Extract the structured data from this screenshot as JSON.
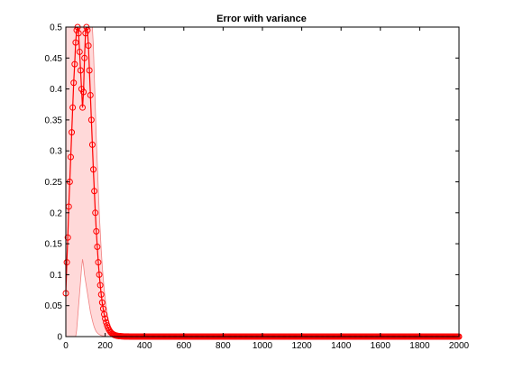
{
  "chart_data": {
    "type": "line",
    "title": "Error with variance",
    "xlabel": "",
    "ylabel": "",
    "xlim": [
      0,
      2000
    ],
    "ylim": [
      0,
      0.5
    ],
    "xticks": [
      0,
      200,
      400,
      600,
      800,
      1000,
      1200,
      1400,
      1600,
      1800,
      2000
    ],
    "yticks": [
      0,
      0.05,
      0.1,
      0.15,
      0.2,
      0.25,
      0.3,
      0.35,
      0.4,
      0.45,
      0.5
    ],
    "grid": false,
    "legend": "none",
    "marker": "circle",
    "colors": {
      "line": "#ff0000",
      "band_fill": "#ffd9d9",
      "band_edge": "#f08080",
      "axes": "#000000",
      "background": "#ffffff"
    },
    "series": [
      {
        "x": [
          0,
          5,
          10,
          15,
          20,
          25,
          30,
          35,
          40,
          45,
          50,
          55,
          60,
          65,
          70,
          75,
          80,
          85,
          90,
          95,
          100,
          105,
          110,
          115,
          120,
          125,
          130,
          135,
          140,
          145,
          150,
          155,
          160,
          165,
          170,
          175,
          180,
          185,
          190,
          195,
          200,
          205,
          210,
          215,
          220,
          225,
          230,
          235,
          240,
          245,
          250,
          260,
          270,
          280,
          290,
          300,
          310,
          320,
          340,
          360,
          400,
          500,
          600,
          800,
          1000,
          1200,
          1400,
          1600,
          1800,
          2000
        ],
        "y": [
          0.07,
          0.12,
          0.16,
          0.21,
          0.25,
          0.29,
          0.33,
          0.37,
          0.41,
          0.44,
          0.475,
          0.495,
          0.5,
          0.49,
          0.46,
          0.43,
          0.4,
          0.37,
          0.395,
          0.45,
          0.49,
          0.5,
          0.495,
          0.47,
          0.43,
          0.39,
          0.35,
          0.31,
          0.27,
          0.235,
          0.2,
          0.17,
          0.145,
          0.12,
          0.1,
          0.083,
          0.068,
          0.055,
          0.045,
          0.036,
          0.029,
          0.023,
          0.018,
          0.014,
          0.011,
          0.0085,
          0.0065,
          0.005,
          0.0038,
          0.0029,
          0.0022,
          0.0013,
          0.0008,
          0.0005,
          0.0003,
          0.0002,
          0.0001,
          0.0001,
          0,
          0,
          0,
          0,
          0,
          0,
          0,
          0,
          0,
          0,
          0,
          0
        ],
        "y_lower": [
          0,
          0,
          0,
          0,
          0,
          0,
          0,
          0,
          0,
          0,
          0,
          0.01,
          0.03,
          0.05,
          0.07,
          0.09,
          0.11,
          0.125,
          0.115,
          0.1,
          0.09,
          0.08,
          0.07,
          0.06,
          0.05,
          0.04,
          0.033,
          0.026,
          0.02,
          0.015,
          0.011,
          0.008,
          0.006,
          0.0045,
          0.0034,
          0.0025,
          0.0018,
          0.0013,
          0.001,
          0.0007,
          0.0005,
          0.0003,
          0.0002,
          0.0001,
          0.0001,
          0,
          0,
          0,
          0,
          0,
          0,
          0,
          0,
          0,
          0,
          0,
          0,
          0,
          0,
          0,
          0,
          0,
          0,
          0,
          0,
          0,
          0,
          0,
          0,
          0
        ],
        "y_upper": [
          0.5,
          0.5,
          0.5,
          0.5,
          0.5,
          0.5,
          0.5,
          0.5,
          0.5,
          0.5,
          0.5,
          0.5,
          0.5,
          0.5,
          0.5,
          0.5,
          0.5,
          0.5,
          0.5,
          0.5,
          0.5,
          0.5,
          0.5,
          0.5,
          0.5,
          0.5,
          0.5,
          0.5,
          0.47,
          0.42,
          0.37,
          0.32,
          0.28,
          0.24,
          0.2,
          0.17,
          0.14,
          0.115,
          0.095,
          0.077,
          0.062,
          0.049,
          0.038,
          0.03,
          0.023,
          0.017,
          0.013,
          0.01,
          0.0075,
          0.0056,
          0.0042,
          0.0025,
          0.0015,
          0.0009,
          0.0005,
          0.0003,
          0.0002,
          0.0001,
          0.0001,
          0,
          0,
          0,
          0,
          0,
          0,
          0,
          0,
          0,
          0,
          0
        ]
      }
    ],
    "markers_x_step": 5
  }
}
